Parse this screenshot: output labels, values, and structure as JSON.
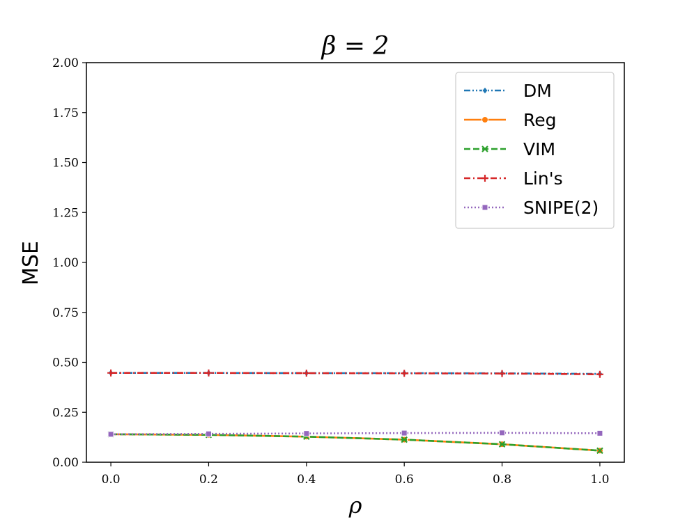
{
  "chart_data": {
    "type": "line",
    "title": "β = 2",
    "xlabel": "ρ",
    "ylabel": "MSE",
    "xlim": [
      -0.05,
      1.05
    ],
    "ylim": [
      0,
      2
    ],
    "xticks": [
      0.0,
      0.2,
      0.4,
      0.6,
      0.8,
      1.0
    ],
    "xtick_labels": [
      "0.0",
      "0.2",
      "0.4",
      "0.6",
      "0.8",
      "1.0"
    ],
    "yticks": [
      0,
      0.25,
      0.5,
      0.75,
      1.0,
      1.25,
      1.5,
      1.75,
      2.0
    ],
    "ytick_labels": [
      "0.00",
      "0.25",
      "0.50",
      "0.75",
      "1.00",
      "1.25",
      "1.50",
      "1.75",
      "2.00"
    ],
    "grid": false,
    "legend_position": "top-right",
    "x": [
      0.0,
      0.2,
      0.4,
      0.6,
      0.8,
      1.0
    ],
    "series": [
      {
        "name": "DM",
        "values": [
          0.447,
          0.447,
          0.446,
          0.446,
          0.445,
          0.442
        ],
        "color": "#1f77b4",
        "marker": "diamond",
        "dash": "dashdotdot"
      },
      {
        "name": "Reg",
        "values": [
          0.14,
          0.137,
          0.128,
          0.113,
          0.09,
          0.058
        ],
        "color": "#ff7f0e",
        "marker": "circle",
        "dash": "solid"
      },
      {
        "name": "VIM",
        "values": [
          0.14,
          0.137,
          0.128,
          0.113,
          0.09,
          0.058
        ],
        "color": "#2ca02c",
        "marker": "x",
        "dash": "dashed"
      },
      {
        "name": "Lin's",
        "values": [
          0.447,
          0.447,
          0.446,
          0.445,
          0.444,
          0.44
        ],
        "color": "#d62728",
        "marker": "plus",
        "dash": "dashdot"
      },
      {
        "name": "SNIPE(2)",
        "values": [
          0.14,
          0.142,
          0.144,
          0.146,
          0.147,
          0.145
        ],
        "color": "#9467bd",
        "marker": "square",
        "dash": "dotted"
      }
    ]
  }
}
